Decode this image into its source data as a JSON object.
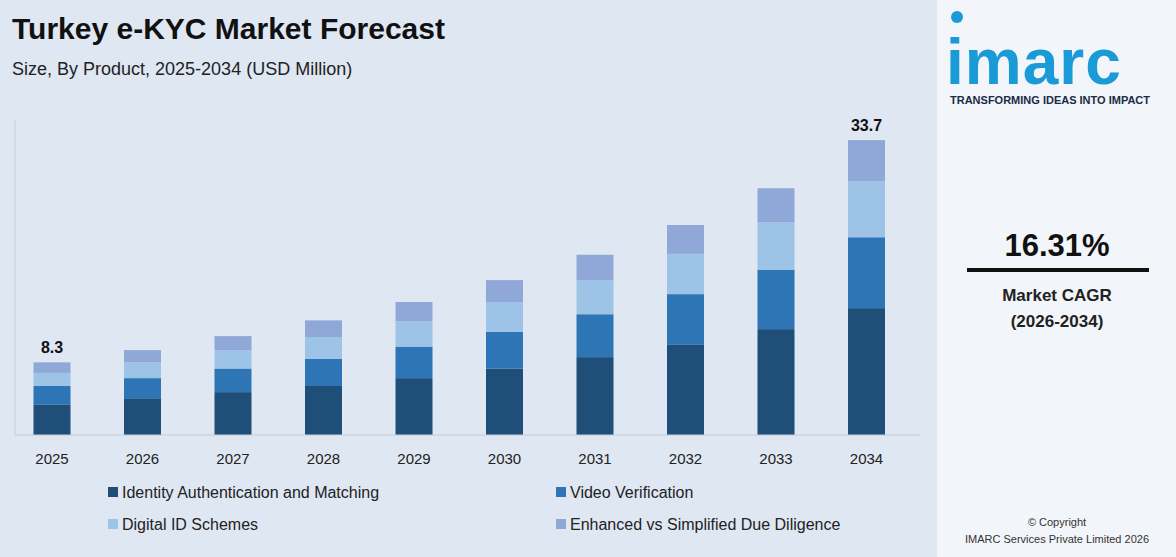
{
  "chart_data": {
    "type": "bar",
    "stacked": true,
    "orientation": "vertical",
    "title": "Turkey e-KYC Market Forecast",
    "subtitle": "Size, By Product, 2025-2034 (USD Million)",
    "categories": [
      "2025",
      "2026",
      "2027",
      "2028",
      "2029",
      "2030",
      "2031",
      "2032",
      "2033",
      "2034"
    ],
    "series": [
      {
        "name": "Identity Authentication and Matching",
        "color": "#1f4e79",
        "values": [
          3.5,
          4.2,
          4.9,
          5.6,
          6.5,
          7.6,
          8.9,
          10.3,
          12.1,
          14.5
        ]
      },
      {
        "name": "Video Verification",
        "color": "#2e75b6",
        "values": [
          2.1,
          2.3,
          2.7,
          3.1,
          3.6,
          4.2,
          4.9,
          5.8,
          6.8,
          8.1
        ]
      },
      {
        "name": "Digital ID Schemes",
        "color": "#9dc3e6",
        "values": [
          1.5,
          1.8,
          2.1,
          2.5,
          2.9,
          3.4,
          3.9,
          4.6,
          5.4,
          6.4
        ]
      },
      {
        "name": "Enhanced vs Simplified Due Diligence",
        "color": "#8fa8d8",
        "values": [
          1.2,
          1.4,
          1.6,
          1.9,
          2.2,
          2.5,
          2.9,
          3.3,
          3.9,
          4.7
        ]
      }
    ],
    "annotations": [
      {
        "category": "2025",
        "text": "8.3"
      },
      {
        "category": "2034",
        "text": "33.7"
      }
    ],
    "ylim": [
      0,
      36
    ],
    "tick_labels": "x",
    "grid": false,
    "legend": "bottom"
  },
  "side_panel": {
    "logo": "imarc",
    "tagline": "TRANSFORMING IDEAS INTO IMPACT",
    "cagr": "16.31%",
    "cagr_label": "Market CAGR",
    "cagr_period": "(2026-2034)",
    "copyright": "© Copyright",
    "company": "IMARC Services Private Limited 2026"
  }
}
